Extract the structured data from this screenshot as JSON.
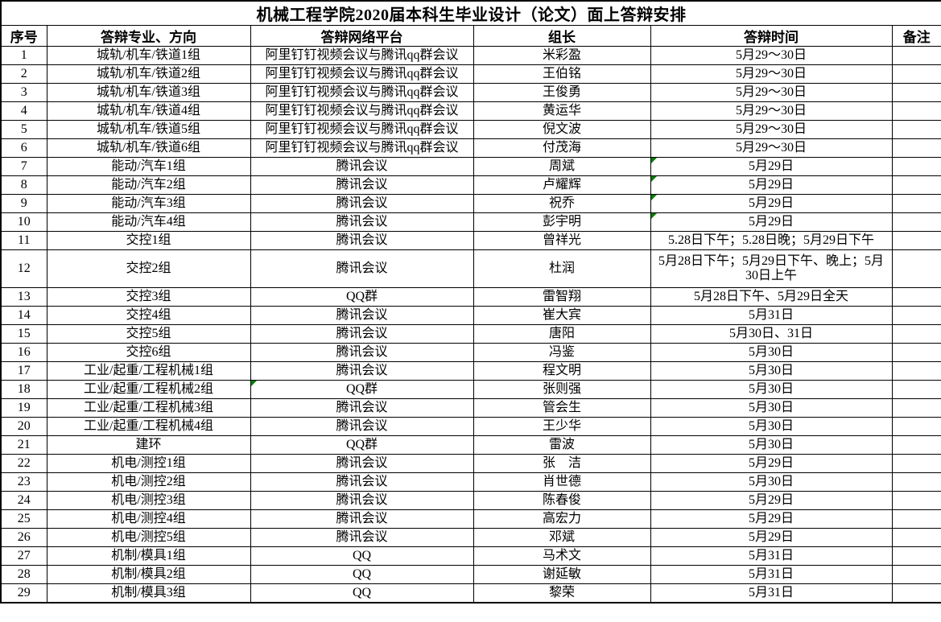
{
  "title": "机械工程学院2020届本科生毕业设计（论文）面上答辩安排",
  "columns": [
    "序号",
    "答辩专业、方向",
    "答辩网络平台",
    "组长",
    "答辩时间",
    "备注"
  ],
  "colors": {
    "border": "#000000",
    "background": "#ffffff",
    "flag_triangle": "#008000"
  },
  "rows": [
    {
      "no": "1",
      "major": "城轨/机车/铁道1组",
      "platform": "阿里钉钉视频会议与腾讯qq群会议",
      "leader": "米彩盈",
      "time": "5月29～30日",
      "remark": ""
    },
    {
      "no": "2",
      "major": "城轨/机车/铁道2组",
      "platform": "阿里钉钉视频会议与腾讯qq群会议",
      "leader": "王伯铭",
      "time": "5月29～30日",
      "remark": ""
    },
    {
      "no": "3",
      "major": "城轨/机车/铁道3组",
      "platform": "阿里钉钉视频会议与腾讯qq群会议",
      "leader": "王俊勇",
      "time": "5月29～30日",
      "remark": ""
    },
    {
      "no": "4",
      "major": "城轨/机车/铁道4组",
      "platform": "阿里钉钉视频会议与腾讯qq群会议",
      "leader": "黄运华",
      "time": "5月29～30日",
      "remark": ""
    },
    {
      "no": "5",
      "major": "城轨/机车/铁道5组",
      "platform": "阿里钉钉视频会议与腾讯qq群会议",
      "leader": "倪文波",
      "time": "5月29～30日",
      "remark": ""
    },
    {
      "no": "6",
      "major": "城轨/机车/铁道6组",
      "platform": "阿里钉钉视频会议与腾讯qq群会议",
      "leader": "付茂海",
      "time": "5月29～30日",
      "remark": ""
    },
    {
      "no": "7",
      "major": "能动/汽车1组",
      "platform": "腾讯会议",
      "leader": "周斌",
      "time": "5月29日",
      "remark": "",
      "flags": [
        "time"
      ]
    },
    {
      "no": "8",
      "major": "能动/汽车2组",
      "platform": "腾讯会议",
      "leader": "卢耀辉",
      "time": "5月29日",
      "remark": "",
      "flags": [
        "time"
      ]
    },
    {
      "no": "9",
      "major": "能动/汽车3组",
      "platform": "腾讯会议",
      "leader": "祝乔",
      "time": "5月29日",
      "remark": "",
      "flags": [
        "time"
      ]
    },
    {
      "no": "10",
      "major": "能动/汽车4组",
      "platform": "腾讯会议",
      "leader": "彭宇明",
      "time": "5月29日",
      "remark": "",
      "flags": [
        "time"
      ]
    },
    {
      "no": "11",
      "major": "交控1组",
      "platform": "腾讯会议",
      "leader": "曾祥光",
      "time": "5.28日下午；5.28日晚；5月29日下午",
      "remark": ""
    },
    {
      "no": "12",
      "major": "交控2组",
      "platform": "腾讯会议",
      "leader": "杜润",
      "time": "5月28日下午；5月29日下午、晚上；5月30日上午",
      "remark": "",
      "tall": true
    },
    {
      "no": "13",
      "major": "交控3组",
      "platform": "QQ群",
      "leader": "雷智翔",
      "time": "5月28日下午、5月29日全天",
      "remark": ""
    },
    {
      "no": "14",
      "major": "交控4组",
      "platform": "腾讯会议",
      "leader": "崔大宾",
      "time": "5月31日",
      "remark": ""
    },
    {
      "no": "15",
      "major": "交控5组",
      "platform": "腾讯会议",
      "leader": "唐阳",
      "time": "5月30日、31日",
      "remark": ""
    },
    {
      "no": "16",
      "major": "交控6组",
      "platform": "腾讯会议",
      "leader": "冯鉴",
      "time": "5月30日",
      "remark": ""
    },
    {
      "no": "17",
      "major": "工业/起重/工程机械1组",
      "platform": "腾讯会议",
      "leader": "程文明",
      "time": "5月30日",
      "remark": ""
    },
    {
      "no": "18",
      "major": "工业/起重/工程机械2组",
      "platform": "QQ群",
      "leader": "张则强",
      "time": "5月30日",
      "remark": "",
      "flags": [
        "platform"
      ]
    },
    {
      "no": "19",
      "major": "工业/起重/工程机械3组",
      "platform": "腾讯会议",
      "leader": "管会生",
      "time": "5月30日",
      "remark": ""
    },
    {
      "no": "20",
      "major": "工业/起重/工程机械4组",
      "platform": "腾讯会议",
      "leader": "王少华",
      "time": "5月30日",
      "remark": ""
    },
    {
      "no": "21",
      "major": "建环",
      "platform": "QQ群",
      "leader": "雷波",
      "time": "5月30日",
      "remark": ""
    },
    {
      "no": "22",
      "major": "机电/测控1组",
      "platform": "腾讯会议",
      "leader": "张　洁",
      "time": "5月29日",
      "remark": ""
    },
    {
      "no": "23",
      "major": "机电/测控2组",
      "platform": "腾讯会议",
      "leader": "肖世德",
      "time": "5月30日",
      "remark": ""
    },
    {
      "no": "24",
      "major": "机电/测控3组",
      "platform": "腾讯会议",
      "leader": "陈春俊",
      "time": "5月29日",
      "remark": ""
    },
    {
      "no": "25",
      "major": "机电/测控4组",
      "platform": "腾讯会议",
      "leader": "高宏力",
      "time": "5月29日",
      "remark": ""
    },
    {
      "no": "26",
      "major": "机电/测控5组",
      "platform": "腾讯会议",
      "leader": "邓斌",
      "time": "5月29日",
      "remark": ""
    },
    {
      "no": "27",
      "major": "机制/模具1组",
      "platform": "QQ",
      "leader": "马术文",
      "time": "5月31日",
      "remark": ""
    },
    {
      "no": "28",
      "major": "机制/模具2组",
      "platform": "QQ",
      "leader": "谢延敏",
      "time": "5月31日",
      "remark": ""
    },
    {
      "no": "29",
      "major": "机制/模具3组",
      "platform": "QQ",
      "leader": "黎荣",
      "time": "5月31日",
      "remark": ""
    }
  ]
}
